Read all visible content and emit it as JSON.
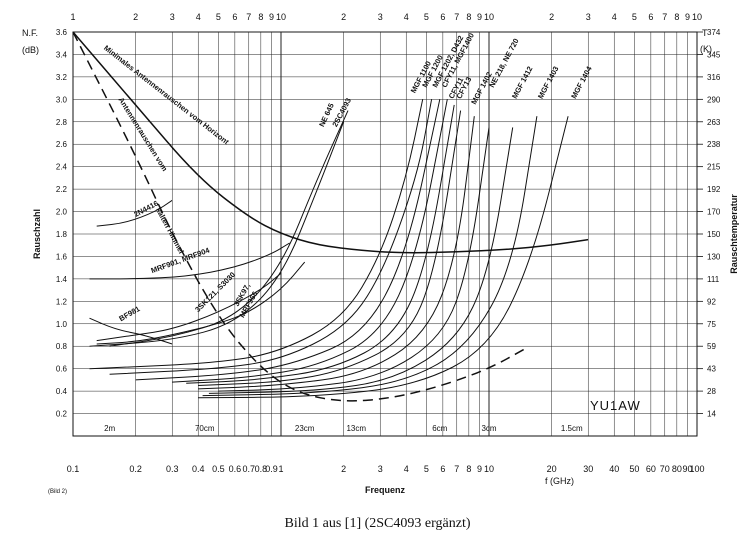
{
  "chart_data": {
    "type": "line",
    "x_scale": "log",
    "xlim": [
      0.1,
      100
    ],
    "ylim": [
      0,
      3.6
    ],
    "grid": true,
    "y_title": "N.F.",
    "y_unit": "(dB)",
    "ylabel": "Rauschzahl",
    "right_title": "T",
    "right_unit": "(K)",
    "right_label": "Rauschtemperatur",
    "xlabel_center": "Frequenz",
    "xlabel_right": "f (GHz)",
    "watermark": "YU1AW",
    "figure_tag": "(Bild 2)",
    "x_ticks": [
      {
        "v": 0.1,
        "t": "0.1"
      },
      {
        "v": 0.2,
        "t": "0.2"
      },
      {
        "v": 0.3,
        "t": "0.3"
      },
      {
        "v": 0.4,
        "t": "0.4"
      },
      {
        "v": 0.5,
        "t": "0.5"
      },
      {
        "v": 0.6,
        "t": "0.6"
      },
      {
        "v": 0.7,
        "t": "0.7"
      },
      {
        "v": 0.8,
        "t": "0.8"
      },
      {
        "v": 0.9,
        "t": "0.9"
      },
      {
        "v": 1,
        "t": "1"
      },
      {
        "v": 2,
        "t": "2"
      },
      {
        "v": 3,
        "t": "3"
      },
      {
        "v": 4,
        "t": "4"
      },
      {
        "v": 5,
        "t": "5"
      },
      {
        "v": 6,
        "t": "6"
      },
      {
        "v": 7,
        "t": "7"
      },
      {
        "v": 8,
        "t": "8"
      },
      {
        "v": 9,
        "t": "9"
      },
      {
        "v": 10,
        "t": "10"
      },
      {
        "v": 20,
        "t": "20"
      },
      {
        "v": 30,
        "t": "30"
      },
      {
        "v": 40,
        "t": "40"
      },
      {
        "v": 50,
        "t": "50"
      },
      {
        "v": 60,
        "t": "60"
      },
      {
        "v": 70,
        "t": "70"
      },
      {
        "v": 80,
        "t": "80"
      },
      {
        "v": 90,
        "t": "90"
      },
      {
        "v": 100,
        "t": "100"
      }
    ],
    "top_ticks": [
      {
        "v": 0.1,
        "t": "1"
      },
      {
        "v": 0.2,
        "t": "2"
      },
      {
        "v": 0.3,
        "t": "3"
      },
      {
        "v": 0.4,
        "t": "4"
      },
      {
        "v": 0.5,
        "t": "5"
      },
      {
        "v": 0.6,
        "t": "6"
      },
      {
        "v": 0.7,
        "t": "7"
      },
      {
        "v": 0.8,
        "t": "8"
      },
      {
        "v": 0.9,
        "t": "9"
      },
      {
        "v": 1,
        "t": "10"
      },
      {
        "v": 2,
        "t": "2"
      },
      {
        "v": 3,
        "t": "3"
      },
      {
        "v": 4,
        "t": "4"
      },
      {
        "v": 5,
        "t": "5"
      },
      {
        "v": 6,
        "t": "6"
      },
      {
        "v": 7,
        "t": "7"
      },
      {
        "v": 8,
        "t": "8"
      },
      {
        "v": 9,
        "t": "9"
      },
      {
        "v": 10,
        "t": "10"
      },
      {
        "v": 20,
        "t": "2"
      },
      {
        "v": 30,
        "t": "3"
      },
      {
        "v": 40,
        "t": "4"
      },
      {
        "v": 50,
        "t": "5"
      },
      {
        "v": 60,
        "t": "6"
      },
      {
        "v": 70,
        "t": "7"
      },
      {
        "v": 80,
        "t": "8"
      },
      {
        "v": 90,
        "t": "9"
      },
      {
        "v": 100,
        "t": "10"
      }
    ],
    "y_ticks": [
      {
        "v": 3.6,
        "t": "3.6"
      },
      {
        "v": 3.4,
        "t": "3.4"
      },
      {
        "v": 3.2,
        "t": "3.2"
      },
      {
        "v": 3.0,
        "t": "3.0"
      },
      {
        "v": 2.8,
        "t": "2.8"
      },
      {
        "v": 2.6,
        "t": "2.6"
      },
      {
        "v": 2.4,
        "t": "2.4"
      },
      {
        "v": 2.2,
        "t": "2.2"
      },
      {
        "v": 2.0,
        "t": "2.0"
      },
      {
        "v": 1.8,
        "t": "1.8"
      },
      {
        "v": 1.6,
        "t": "1.6"
      },
      {
        "v": 1.4,
        "t": "1.4"
      },
      {
        "v": 1.2,
        "t": "1.2"
      },
      {
        "v": 1.0,
        "t": "1.0"
      },
      {
        "v": 0.8,
        "t": "0.8"
      },
      {
        "v": 0.6,
        "t": "0.6"
      },
      {
        "v": 0.4,
        "t": "0.4"
      },
      {
        "v": 0.2,
        "t": "0.2"
      }
    ],
    "right_ticks": [
      {
        "v": 3.6,
        "t": "374"
      },
      {
        "v": 3.4,
        "t": "345"
      },
      {
        "v": 3.2,
        "t": "316"
      },
      {
        "v": 3.0,
        "t": "290"
      },
      {
        "v": 2.8,
        "t": "263"
      },
      {
        "v": 2.6,
        "t": "238"
      },
      {
        "v": 2.4,
        "t": "215"
      },
      {
        "v": 2.2,
        "t": "192"
      },
      {
        "v": 2.0,
        "t": "170"
      },
      {
        "v": 1.8,
        "t": "150"
      },
      {
        "v": 1.6,
        "t": "130"
      },
      {
        "v": 1.4,
        "t": "111"
      },
      {
        "v": 1.2,
        "t": "92"
      },
      {
        "v": 1.0,
        "t": "75"
      },
      {
        "v": 0.8,
        "t": "59"
      },
      {
        "v": 0.6,
        "t": "43"
      },
      {
        "v": 0.4,
        "t": "28"
      },
      {
        "v": 0.2,
        "t": "14"
      }
    ],
    "wavelength_labels": [
      {
        "v": 0.15,
        "t": "2m"
      },
      {
        "v": 0.43,
        "t": "70cm"
      },
      {
        "v": 1.3,
        "t": "23cm"
      },
      {
        "v": 2.3,
        "t": "13cm"
      },
      {
        "v": 5.8,
        "t": "6cm"
      },
      {
        "v": 10,
        "t": "3cm"
      },
      {
        "v": 25,
        "t": "1.5cm"
      }
    ],
    "series": [
      {
        "name": "Minimales Antennenrauschen vom Horizont",
        "style": "solid",
        "width": 1.5,
        "x": [
          0.1,
          0.2,
          0.4,
          0.7,
          1.0,
          1.5,
          2.5,
          4,
          7,
          12,
          20,
          30
        ],
        "y": [
          3.6,
          2.95,
          2.3,
          1.95,
          1.8,
          1.7,
          1.65,
          1.63,
          1.64,
          1.66,
          1.7,
          1.75
        ]
      },
      {
        "name": "Antennenrauschen vom kalten Himmel",
        "style": "dashed",
        "width": 1.5,
        "x": [
          0.1,
          0.2,
          0.3,
          0.5,
          0.8,
          1.2,
          2.0,
          3.5,
          6,
          10,
          15
        ],
        "y": [
          3.6,
          2.5,
          1.8,
          1.05,
          0.6,
          0.38,
          0.3,
          0.34,
          0.45,
          0.6,
          0.78
        ]
      },
      {
        "name": "2N4416",
        "style": "solid",
        "width": 1,
        "x": [
          0.13,
          0.18,
          0.25,
          0.3
        ],
        "y": [
          1.87,
          1.9,
          2.0,
          2.1
        ]
      },
      {
        "name": "BF981",
        "style": "solid",
        "width": 1,
        "x": [
          0.12,
          0.16,
          0.22,
          0.3
        ],
        "y": [
          1.05,
          0.95,
          0.9,
          0.82
        ]
      },
      {
        "name": "MRF901, MRF904",
        "style": "solid",
        "width": 1,
        "x": [
          0.12,
          0.2,
          0.35,
          0.6,
          0.9,
          1.1
        ],
        "y": [
          1.4,
          1.4,
          1.42,
          1.5,
          1.62,
          1.72
        ]
      },
      {
        "name": "3SK121, S3030",
        "style": "solid",
        "width": 1,
        "x": [
          0.13,
          0.2,
          0.3,
          0.5,
          0.8,
          1.0
        ],
        "y": [
          0.85,
          0.9,
          0.95,
          1.1,
          1.3,
          1.45
        ]
      },
      {
        "name": "3SK97, MRF966",
        "style": "solid",
        "width": 1,
        "x": [
          0.13,
          0.2,
          0.3,
          0.5,
          0.7,
          1.0,
          1.3
        ],
        "y": [
          0.82,
          0.84,
          0.9,
          1.0,
          1.1,
          1.3,
          1.55
        ]
      },
      {
        "name": "NE 645",
        "style": "solid",
        "width": 1,
        "x": [
          0.12,
          0.3,
          0.6,
          1.0,
          1.5,
          2.0
        ],
        "y": [
          0.8,
          0.85,
          1.0,
          1.4,
          2.2,
          2.8
        ]
      },
      {
        "name": "2SC4093",
        "style": "solid",
        "width": 1,
        "x": [
          0.15,
          0.3,
          0.6,
          1.0,
          1.5,
          2.1
        ],
        "y": [
          0.8,
          0.88,
          1.05,
          1.5,
          2.3,
          2.9
        ]
      },
      {
        "name": "MGF 1100",
        "style": "solid",
        "width": 1,
        "x": [
          0.12,
          0.5,
          1.0,
          2.0,
          3.0,
          4.0,
          4.8
        ],
        "y": [
          0.6,
          0.65,
          0.75,
          1.05,
          1.6,
          2.3,
          3.0
        ]
      },
      {
        "name": "MGF 1200",
        "style": "solid",
        "width": 1,
        "x": [
          0.15,
          0.5,
          1.0,
          2.0,
          3.0,
          4.5,
          5.3
        ],
        "y": [
          0.55,
          0.6,
          0.68,
          0.95,
          1.4,
          2.3,
          3.0
        ]
      },
      {
        "name": "MGF 1202, D432",
        "style": "solid",
        "width": 1,
        "x": [
          0.2,
          0.6,
          1.2,
          2.5,
          4.0,
          5.8
        ],
        "y": [
          0.5,
          0.55,
          0.65,
          0.9,
          1.6,
          3.0
        ]
      },
      {
        "name": "CFY11, MGF1400",
        "style": "solid",
        "width": 1,
        "x": [
          0.3,
          0.7,
          1.5,
          3.0,
          4.5,
          6.3
        ],
        "y": [
          0.48,
          0.52,
          0.62,
          0.9,
          1.6,
          3.0
        ]
      },
      {
        "name": "CFY11",
        "style": "solid",
        "width": 1,
        "x": [
          0.35,
          0.8,
          1.8,
          3.5,
          5.0,
          6.8
        ],
        "y": [
          0.47,
          0.5,
          0.6,
          0.88,
          1.5,
          2.95
        ]
      },
      {
        "name": "CFY13",
        "style": "solid",
        "width": 1,
        "x": [
          0.4,
          1.0,
          2.0,
          4.0,
          5.5,
          7.3
        ],
        "y": [
          0.45,
          0.48,
          0.58,
          0.86,
          1.45,
          2.9
        ]
      },
      {
        "name": "MGF 1402",
        "style": "solid",
        "width": 1,
        "x": [
          0.4,
          1.0,
          2.5,
          5.0,
          7.0,
          8.5
        ],
        "y": [
          0.42,
          0.45,
          0.55,
          0.9,
          1.6,
          2.85
        ]
      },
      {
        "name": "NE 218, NE 720",
        "style": "solid",
        "width": 1,
        "x": [
          0.5,
          1.2,
          3.0,
          6.0,
          8.0,
          10
        ],
        "y": [
          0.4,
          0.42,
          0.52,
          0.88,
          1.5,
          2.75
        ]
      },
      {
        "name": "MGF 1412",
        "style": "solid",
        "width": 1,
        "x": [
          0.45,
          1.5,
          3.5,
          7.0,
          10,
          13
        ],
        "y": [
          0.38,
          0.4,
          0.5,
          0.85,
          1.45,
          2.75
        ]
      },
      {
        "name": "MGF 1403",
        "style": "solid",
        "width": 1,
        "x": [
          0.42,
          1.5,
          4.0,
          8.0,
          13,
          17
        ],
        "y": [
          0.36,
          0.38,
          0.48,
          0.8,
          1.5,
          2.85
        ]
      },
      {
        "name": "MGF 1404",
        "style": "solid",
        "width": 1,
        "x": [
          0.4,
          1.5,
          4.5,
          10,
          16,
          24
        ],
        "y": [
          0.34,
          0.35,
          0.45,
          0.78,
          1.55,
          2.85
        ]
      }
    ],
    "label_texts": [
      {
        "t": "Minimales Antennenrauschen vom Horizont",
        "v": 0.14,
        "y": 3.45,
        "rot": 38
      },
      {
        "t": "Antennenrauschen vom",
        "v": 0.165,
        "y": 3.0,
        "rot": 58
      },
      {
        "t": "kalten Himmel",
        "v": 0.25,
        "y": 2.02,
        "rot": 62
      },
      {
        "t": "2N4416",
        "v": 0.2,
        "y": 1.95,
        "rot": -28
      },
      {
        "t": "BF981",
        "v": 0.17,
        "y": 1.02,
        "rot": -30
      },
      {
        "t": "MRF901, MRF904",
        "v": 0.24,
        "y": 1.45,
        "rot": -20
      },
      {
        "t": "3SK121, S3030",
        "v": 0.4,
        "y": 1.1,
        "rot": -45
      },
      {
        "t": "3SK97,",
        "v": 0.62,
        "y": 1.15,
        "rot": -60
      },
      {
        "t": "MRF966",
        "v": 0.66,
        "y": 1.05,
        "rot": -60
      },
      {
        "t": "NE 645",
        "v": 1.6,
        "y": 2.75,
        "rot": -65
      },
      {
        "t": "2SC4093",
        "v": 1.85,
        "y": 2.75,
        "rot": -62
      },
      {
        "t": "MGF 1100",
        "v": 4.4,
        "y": 3.05,
        "rot": -62
      },
      {
        "t": "MGF 1200",
        "v": 5.0,
        "y": 3.1,
        "rot": -62
      },
      {
        "t": "MGF 1202, D432",
        "v": 5.6,
        "y": 3.1,
        "rot": -62
      },
      {
        "t": "CFY11, MGF1400",
        "v": 6.2,
        "y": 3.1,
        "rot": -62
      },
      {
        "t": "CFY11",
        "v": 6.7,
        "y": 3.0,
        "rot": -62
      },
      {
        "t": "CFY13",
        "v": 7.3,
        "y": 3.0,
        "rot": -62
      },
      {
        "t": "MGF 1402",
        "v": 8.6,
        "y": 2.95,
        "rot": -62
      },
      {
        "t": "NE 218, NE 720",
        "v": 10.5,
        "y": 3.1,
        "rot": -62
      },
      {
        "t": "MGF 1412",
        "v": 13.5,
        "y": 3.0,
        "rot": -62
      },
      {
        "t": "MGF 1403",
        "v": 18,
        "y": 3.0,
        "rot": -62
      },
      {
        "t": "MGF 1404",
        "v": 26,
        "y": 3.0,
        "rot": -62
      }
    ]
  },
  "caption": "Bild 1 aus [1] (2SC4093 ergänzt)"
}
